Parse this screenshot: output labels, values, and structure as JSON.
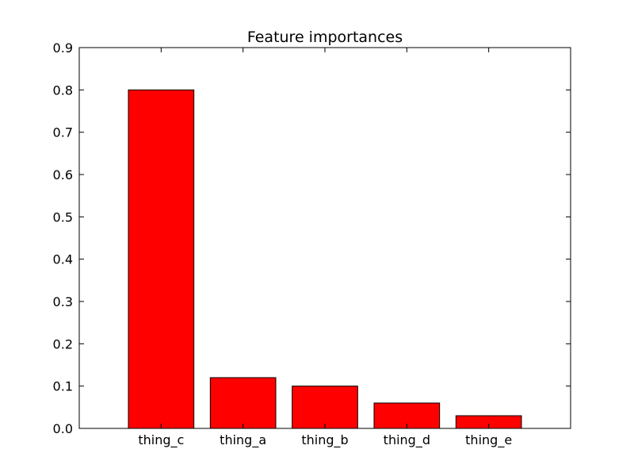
{
  "chart_data": {
    "type": "bar",
    "title": "Feature importances",
    "xlabel": "",
    "ylabel": "",
    "categories": [
      "thing_c",
      "thing_a",
      "thing_b",
      "thing_d",
      "thing_e"
    ],
    "values": [
      0.8,
      0.12,
      0.1,
      0.06,
      0.03
    ],
    "ylim": [
      0,
      0.9
    ],
    "yticks": [
      "0.0",
      "0.1",
      "0.2",
      "0.3",
      "0.4",
      "0.5",
      "0.6",
      "0.7",
      "0.8",
      "0.9"
    ],
    "xlim": [
      -1,
      5
    ],
    "bar_color": "#ff0000",
    "edge_color": "#000000",
    "grid": false,
    "legend": "none"
  }
}
